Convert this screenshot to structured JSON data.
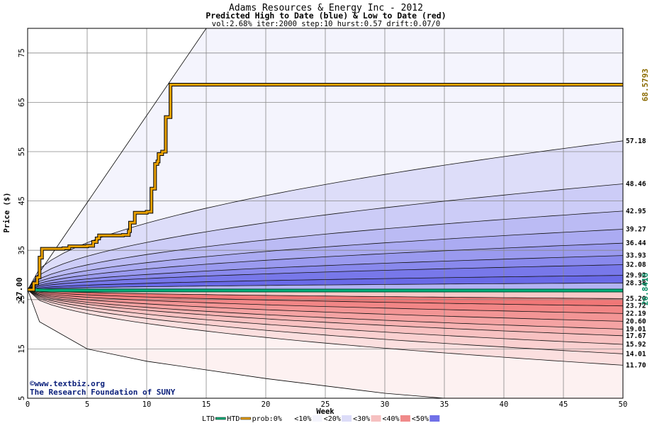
{
  "chart_data": {
    "type": "area",
    "title": "Adams Resources & Energy Inc - 2012",
    "subtitle": "Predicted High to Date (blue) &  Low to Date (red)",
    "params": "vol:2.68% iter:2000 step:10 hurst:0.57 drift:0.07/0",
    "xlabel": "Week",
    "ylabel": "Price ($)",
    "xlim": [
      0,
      50
    ],
    "ylim": [
      5,
      80
    ],
    "x_ticks": [
      0,
      5,
      10,
      15,
      20,
      25,
      30,
      35,
      40,
      45,
      50
    ],
    "y_ticks": [
      5,
      15,
      25,
      35,
      45,
      55,
      65,
      75
    ],
    "grid": true,
    "start_price": 27.0,
    "start_label": "27.00",
    "high_to_date_label": "68.5793",
    "low_to_date_label": "26.8418",
    "high_to_date": {
      "x": [
        0,
        0.5,
        0.8,
        1,
        1.2,
        3,
        3.5,
        5,
        5.5,
        5.8,
        6,
        8,
        8.5,
        8.6,
        9,
        10,
        10.4,
        10.7,
        10.9,
        11,
        11.3,
        11.6,
        12,
        50
      ],
      "y": [
        27.0,
        28.3,
        29.5,
        33.5,
        35.3,
        35.4,
        35.8,
        35.9,
        36.7,
        37.4,
        38.0,
        38.1,
        38.9,
        40.6,
        42.6,
        42.8,
        47.5,
        52.5,
        53.0,
        54.5,
        55.0,
        62.0,
        68.58,
        68.58
      ]
    },
    "low_to_date": {
      "x": [
        0,
        2,
        50
      ],
      "y": [
        27.0,
        26.85,
        26.84
      ]
    },
    "high_quantiles": [
      {
        "label": "57.18",
        "end": 57.18
      },
      {
        "label": "48.46",
        "end": 48.46
      },
      {
        "label": "42.95",
        "end": 42.95
      },
      {
        "label": "39.27",
        "end": 39.27
      },
      {
        "label": "36.44",
        "end": 36.44
      },
      {
        "label": "33.93",
        "end": 33.93
      },
      {
        "label": "32.08",
        "end": 32.08
      },
      {
        "label": "29.92",
        "end": 29.92
      },
      {
        "label": "28.38",
        "end": 28.38
      }
    ],
    "low_quantiles": [
      {
        "label": "25.20",
        "end": 25.2
      },
      {
        "label": "23.72",
        "end": 23.72
      },
      {
        "label": "22.19",
        "end": 22.19
      },
      {
        "label": "20.60",
        "end": 20.6
      },
      {
        "label": "19.01",
        "end": 19.01
      },
      {
        "label": "17.67",
        "end": 17.67
      },
      {
        "label": "15.92",
        "end": 15.92
      },
      {
        "label": "14.01",
        "end": 14.01
      },
      {
        "label": "11.70",
        "end": 11.7
      }
    ],
    "max_envelope": {
      "x": [
        0,
        15,
        50
      ],
      "y": [
        27.0,
        80.0,
        80.0
      ]
    },
    "min_envelope": {
      "x": [
        0,
        1,
        5,
        10,
        20,
        30,
        35
      ],
      "y": [
        27.0,
        20.5,
        15.0,
        12.5,
        9.0,
        6.0,
        5.0
      ]
    },
    "colors": {
      "high_band_light": "#eeeefc",
      "high_band_dark": "#6a6ae8",
      "low_band_light": "#fdeeee",
      "low_band_dark": "#f07474",
      "high_to_date": "#e8a000",
      "low_to_date": "#00b07a",
      "grid": "#888888"
    }
  },
  "legend": {
    "items": [
      {
        "label": "LTD",
        "swatch": "line",
        "color": "#00b07a"
      },
      {
        "label": "HTD",
        "swatch": "line",
        "color": "#e8a000"
      },
      {
        "label": "prob:0%",
        "swatch": "fill",
        "color": "#ffffff"
      },
      {
        "label": "<10%",
        "swatch": "fill",
        "color": "#f4f4fc"
      },
      {
        "label": "<20%",
        "swatch": "fill",
        "color": "#dcdcf8"
      },
      {
        "label": "<30%",
        "swatch": "fill",
        "color": "#f6c0c0"
      },
      {
        "label": "<40%",
        "swatch": "fill",
        "color": "#f08a8a"
      },
      {
        "label": "<50%",
        "swatch": "fill",
        "color": "#7070e8"
      }
    ]
  },
  "credit": {
    "line1": "©www.textbiz.org",
    "line2": "The Research Foundation of SUNY"
  }
}
